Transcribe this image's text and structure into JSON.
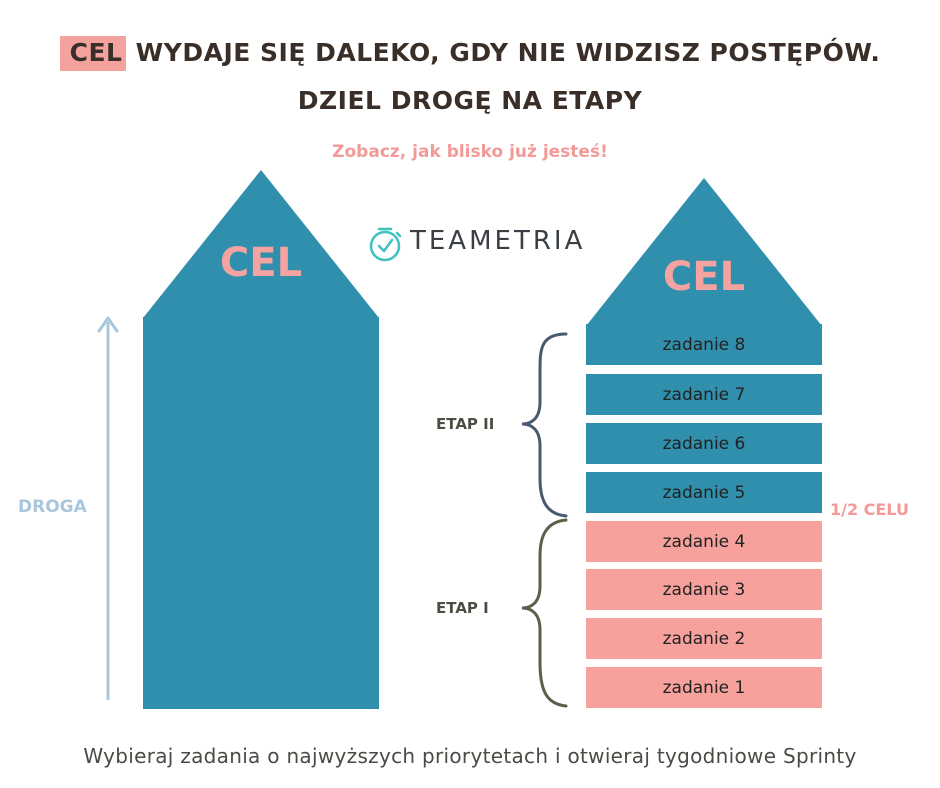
{
  "title": {
    "highlight": "CEL",
    "line1_rest": " WYDAJE SIĘ DALEKO, GDY NIE WIDZISZ POSTĘPÓW.",
    "line2": "DZIEL DROGĘ NA ETAPY"
  },
  "subtitle": "Zobacz, jak blisko już jesteś!",
  "logo": {
    "text": "TEAMETRIA",
    "icon": "stopwatch-icon"
  },
  "left_house": {
    "goal_label": "CEL",
    "road_label": "DROGA"
  },
  "right_house": {
    "goal_label": "CEL",
    "tasks": [
      {
        "label": "zadanie 8",
        "stage": "II"
      },
      {
        "label": "zadanie 7",
        "stage": "II"
      },
      {
        "label": "zadanie 6",
        "stage": "II"
      },
      {
        "label": "zadanie 5",
        "stage": "II"
      },
      {
        "label": "zadanie 4",
        "stage": "I"
      },
      {
        "label": "zadanie 3",
        "stage": "I"
      },
      {
        "label": "zadanie 2",
        "stage": "I"
      },
      {
        "label": "zadanie 1",
        "stage": "I"
      }
    ],
    "stage2_label": "ETAP II",
    "stage1_label": "ETAP I",
    "half_label": "1/2 CELU"
  },
  "footer": "Wybieraj zadania o najwyższych priorytetach i otwieraj tygodniowe Sprinty",
  "colors": {
    "teal": "#2f8fac",
    "pink": "#f7a19d",
    "pink_text": "#f29a97",
    "dark_text": "#3a2f28",
    "arrow": "#a8c7dd",
    "brace_blue": "#4a5a6e",
    "brace_green": "#5a5f4a"
  }
}
